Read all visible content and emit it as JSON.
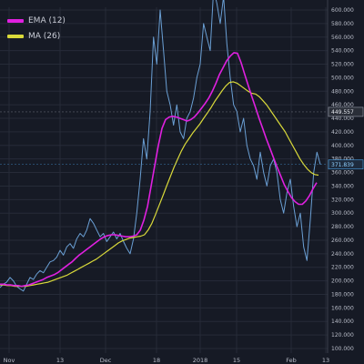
{
  "chart_data": {
    "type": "line",
    "title": "",
    "xlabel": "",
    "ylabel": "",
    "ylim": [
      100,
      600
    ],
    "y_ticks": [
      100,
      120,
      140,
      160,
      180,
      200,
      220,
      240,
      260,
      280,
      300,
      320,
      340,
      360,
      380,
      400,
      420,
      440,
      460,
      480,
      500,
      520,
      540,
      560,
      580,
      600
    ],
    "y_tick_labels": [
      "100.000",
      "120.000",
      "140.000",
      "160.000",
      "180.000",
      "200.000",
      "220.000",
      "240.000",
      "260.000",
      "280.000",
      "300.000",
      "320.000",
      "340.000",
      "360.000",
      "380.000",
      "400.000",
      "420.000",
      "440.000",
      "460.000",
      "480.000",
      "500.000",
      "520.000",
      "540.000",
      "560.000",
      "580.000",
      "600.000"
    ],
    "x_tick_labels": [
      "Nov",
      "13",
      "Dec",
      "18",
      "2018",
      "15",
      "Feb",
      "13"
    ],
    "grid": true,
    "legend_position": "top-left",
    "colors": {
      "background": "#161a25",
      "grid": "#262b38",
      "price": "#6a9fd4",
      "ema": "#e020e0",
      "ma": "#d9d93a",
      "crosshair": "#7a7e8a",
      "price_tag": "#4aa3e8",
      "level_tag": "#9aa0ac"
    },
    "levels": [
      {
        "value": 449.557,
        "label": "449.557",
        "kind": "level"
      },
      {
        "value": 371.839,
        "label": "371.839",
        "kind": "price"
      }
    ],
    "series": [
      {
        "name": "EMA (12)",
        "color": "#e020e0",
        "values": [
          195,
          195,
          194,
          194,
          193,
          193,
          192,
          193,
          194,
          196,
          198,
          200,
          202,
          205,
          207,
          209,
          212,
          216,
          220,
          224,
          228,
          233,
          238,
          242,
          246,
          250,
          254,
          258,
          262,
          265,
          267,
          268,
          268,
          267,
          266,
          265,
          265,
          266,
          268,
          275,
          290,
          310,
          340,
          370,
          400,
          425,
          438,
          442,
          443,
          442,
          440,
          438,
          436,
          438,
          442,
          448,
          455,
          462,
          470,
          480,
          492,
          505,
          515,
          525,
          532,
          537,
          536,
          522,
          505,
          488,
          472,
          456,
          440,
          425,
          410,
          396,
          382,
          368,
          355,
          342,
          332,
          323,
          317,
          313,
          313,
          318,
          326,
          336,
          345
        ]
      },
      {
        "name": "MA (26)",
        "color": "#d9d93a",
        "values": [
          194,
          194,
          193,
          193,
          192,
          192,
          192,
          192,
          193,
          194,
          195,
          196,
          197,
          198,
          200,
          202,
          204,
          206,
          208,
          211,
          214,
          217,
          220,
          223,
          226,
          229,
          232,
          236,
          240,
          244,
          248,
          252,
          256,
          259,
          261,
          263,
          264,
          265,
          266,
          268,
          275,
          285,
          298,
          312,
          326,
          340,
          354,
          368,
          380,
          392,
          402,
          410,
          418,
          425,
          432,
          440,
          448,
          456,
          465,
          473,
          481,
          488,
          493,
          494,
          492,
          488,
          484,
          480,
          477,
          476,
          472,
          466,
          460,
          452,
          444,
          436,
          428,
          420,
          410,
          400,
          390,
          380,
          372,
          365,
          360,
          357,
          356
        ]
      },
      {
        "name": "",
        "color": "#6a9fd4",
        "values": [
          190,
          195,
          198,
          205,
          200,
          192,
          188,
          185,
          195,
          205,
          202,
          210,
          215,
          212,
          220,
          228,
          230,
          235,
          245,
          238,
          250,
          255,
          248,
          262,
          270,
          265,
          275,
          292,
          285,
          275,
          265,
          270,
          258,
          265,
          272,
          262,
          270,
          258,
          248,
          240,
          262,
          300,
          350,
          410,
          380,
          450,
          560,
          520,
          600,
          540,
          480,
          460,
          430,
          460,
          420,
          410,
          440,
          450,
          470,
          500,
          520,
          580,
          560,
          540,
          630,
          610,
          580,
          620,
          550,
          500,
          460,
          450,
          420,
          440,
          400,
          380,
          370,
          350,
          390,
          360,
          340,
          370,
          380,
          360,
          320,
          300,
          330,
          350,
          310,
          280,
          300,
          250,
          230,
          290,
          360,
          390,
          371.839
        ]
      }
    ]
  }
}
